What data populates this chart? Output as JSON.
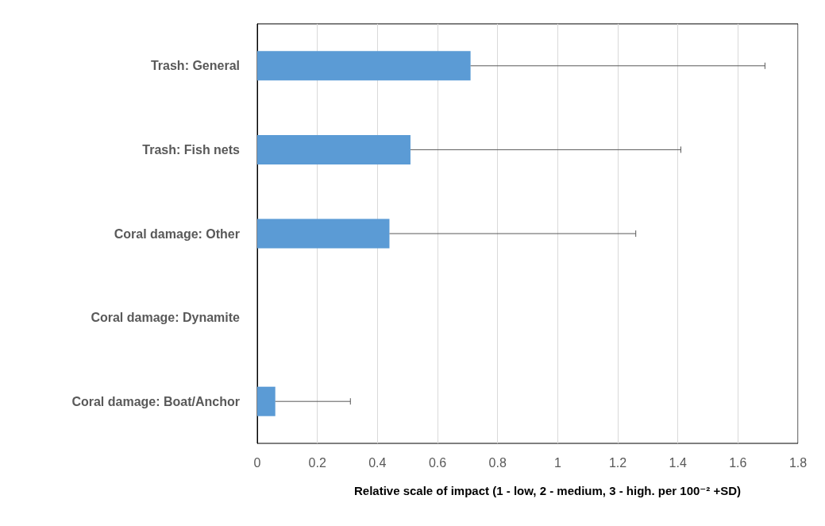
{
  "chart_data": {
    "type": "bar",
    "orientation": "horizontal",
    "xlabel": "Relative scale of impact (1 - low, 2 - medium, 3 - high. per 100⁻² +SD)",
    "categories": [
      "Trash: General",
      "Trash: Fish nets",
      "Coral damage: Other",
      "Coral damage: Dynamite",
      "Coral damage: Boat/Anchor"
    ],
    "values": [
      0.71,
      0.51,
      0.44,
      0,
      0.06
    ],
    "errors": [
      [
        0.71,
        1.69
      ],
      [
        0.51,
        1.41
      ],
      [
        0.44,
        1.26
      ],
      null,
      [
        0.06,
        0.31
      ]
    ],
    "color": "#5b9bd5",
    "xlim": [
      0,
      1.8
    ],
    "xticks": [
      0,
      0.2,
      0.4,
      0.6,
      0.8,
      1,
      1.2,
      1.4,
      1.6,
      1.8
    ],
    "grid": "x"
  }
}
